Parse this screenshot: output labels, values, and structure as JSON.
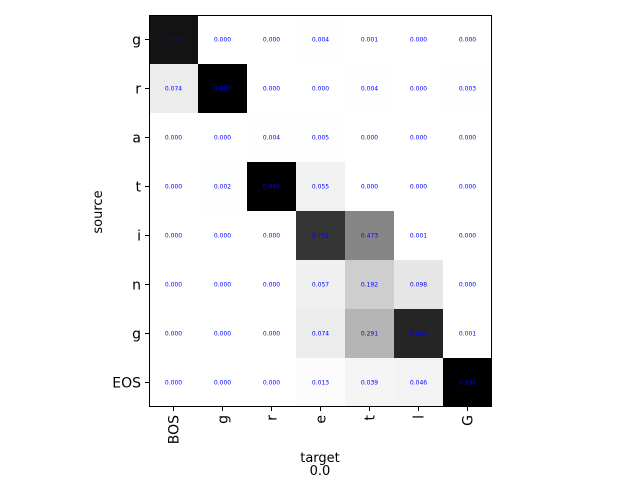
{
  "chart_data": {
    "type": "heatmap",
    "xlabel": "target",
    "ylabel": "source",
    "caption": "0.0",
    "colormap": "greys",
    "value_color": "#0000ff",
    "x": [
      "BOS",
      "g",
      "r",
      "e",
      "t",
      "l",
      "G"
    ],
    "y": [
      "g",
      "r",
      "a",
      "t",
      "i",
      "n",
      "g",
      "EOS"
    ],
    "values": [
      [
        0.926,
        0.0,
        0.0,
        0.004,
        0.001,
        0.0,
        0.0
      ],
      [
        0.074,
        0.997,
        0.0,
        0.0,
        0.004,
        0.0,
        0.003
      ],
      [
        0.0,
        0.0,
        0.004,
        0.005,
        0.0,
        0.0,
        0.0
      ],
      [
        0.0,
        0.002,
        0.996,
        0.055,
        0.0,
        0.0,
        0.0
      ],
      [
        0.0,
        0.0,
        0.0,
        0.792,
        0.473,
        0.001,
        0.0
      ],
      [
        0.0,
        0.0,
        0.0,
        0.057,
        0.192,
        0.098,
        0.0
      ],
      [
        0.0,
        0.0,
        0.0,
        0.074,
        0.291,
        0.854,
        0.001
      ],
      [
        0.0,
        0.0,
        0.0,
        0.013,
        0.039,
        0.046,
        0.996
      ]
    ]
  }
}
